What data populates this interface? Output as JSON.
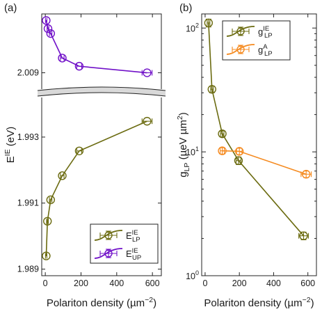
{
  "chart_data": [
    {
      "panel": "(a)",
      "type": "line",
      "xlabel": "Polariton density (µm⁻²)",
      "xlabel_parts": [
        "Polariton density (µm",
        "−2",
        ")"
      ],
      "ylabel": "E^IE (eV)",
      "ylabel_parts": [
        "E",
        "IE",
        " (eV)"
      ],
      "xlim": [
        -20,
        650
      ],
      "x_ticks": [
        0,
        200,
        400,
        600
      ],
      "axis_break": true,
      "upper_segment": {
        "ylim": [
          2.0085,
          2.0108
        ],
        "y_ticks": [
          2.009
        ],
        "tick_labels": [
          "2.009"
        ]
      },
      "lower_segment": {
        "ylim": [
          1.9888,
          1.9942
        ],
        "y_ticks": [
          1.989,
          1.991,
          1.993
        ],
        "tick_labels": [
          "1.989",
          "1.991",
          "1.993"
        ]
      },
      "series": [
        {
          "name": "E_LP^IE",
          "legend_main": "E",
          "legend_sup": "IE",
          "legend_sub": "LP",
          "segment": "lower",
          "color": "#6b6b10",
          "x": [
            5,
            12,
            30,
            95,
            190,
            570
          ],
          "y": [
            1.9894,
            1.99045,
            1.9911,
            1.99183,
            1.99258,
            1.99348
          ],
          "xerr": [
            4,
            5,
            7,
            10,
            14,
            28
          ]
        },
        {
          "name": "E_UP^IE",
          "legend_main": "E",
          "legend_sup": "IE",
          "legend_sub": "UP",
          "segment": "upper",
          "color": "#7010c8",
          "x": [
            5,
            15,
            30,
            95,
            190,
            570
          ],
          "y": [
            2.0106,
            2.01035,
            2.0102,
            2.00945,
            2.0092,
            2.009
          ],
          "xerr": [
            4,
            5,
            7,
            10,
            14,
            28
          ]
        }
      ]
    },
    {
      "panel": "(b)",
      "type": "line",
      "xlabel": "Polariton density (µm⁻²)",
      "xlabel_parts": [
        "Polariton density (µm",
        "−2",
        ")"
      ],
      "ylabel": "g_LP (µeV µm²)",
      "ylabel_parts": [
        "g",
        "LP",
        " (µeV µm",
        "2",
        ")"
      ],
      "xlim": [
        -20,
        650
      ],
      "x_ticks": [
        0,
        200,
        400,
        600
      ],
      "y_scale": "log",
      "ylim": [
        1,
        130
      ],
      "y_ticks": [
        1,
        10,
        100
      ],
      "y_tick_labels": [
        [
          "10",
          "0"
        ],
        [
          "10",
          "1"
        ],
        [
          "10",
          "2"
        ]
      ],
      "series": [
        {
          "name": "g_LP^IE",
          "legend_main": "g",
          "legend_sup": "IE",
          "legend_sub": "LP",
          "color": "#6b6b10",
          "x": [
            20,
            40,
            100,
            195,
            575
          ],
          "y": [
            110,
            32,
            14,
            8.5,
            2.1
          ],
          "xerr": [
            8,
            8,
            10,
            14,
            28
          ],
          "yerr": [
            8,
            2,
            0.8,
            0.6,
            0.15
          ]
        },
        {
          "name": "g_LP^A",
          "legend_main": "g",
          "legend_sup": "A",
          "legend_sub": "LP",
          "color": "#f58a1f",
          "x": [
            100,
            200,
            590
          ],
          "y": [
            10.2,
            10.1,
            6.6
          ],
          "xerr": [
            12,
            16,
            30
          ],
          "yerr": [
            0.6,
            0.6,
            0.4
          ]
        }
      ]
    }
  ]
}
